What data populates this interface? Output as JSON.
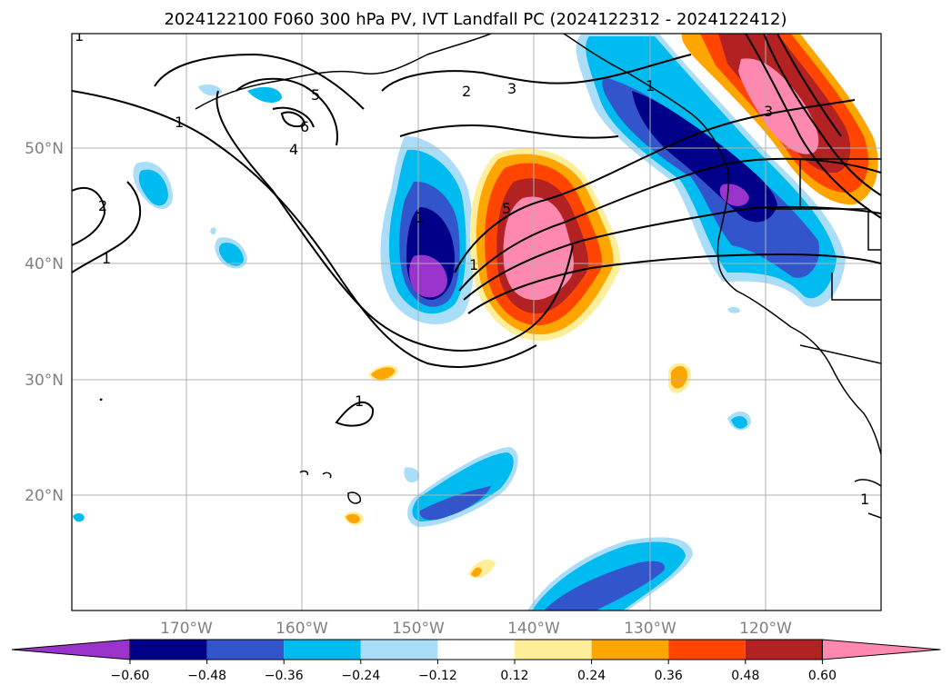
{
  "title": "2024122100 F060 300 hPa PV, IVT Landfall PC (2024122312 - 2024122412)",
  "map": {
    "lat_labels": [
      "50°N",
      "40°N",
      "30°N",
      "20°N"
    ],
    "lon_labels": [
      "170°W",
      "160°W",
      "150°W",
      "140°W",
      "130°W",
      "120°W"
    ]
  },
  "colorbar": {
    "colors": [
      "#9933cc",
      "#000088",
      "#3355cc",
      "#00bbf0",
      "#aaddf8",
      "#ffffff",
      "#ffee99",
      "#ffa500",
      "#ff4500",
      "#b22222",
      "#ff88b0"
    ],
    "tick_labels": [
      "−0.60",
      "−0.48",
      "−0.36",
      "−0.24",
      "−0.12",
      "0.12",
      "0.24",
      "0.36",
      "0.48",
      "0.60"
    ]
  },
  "pv_contour_labels": [
    "1",
    "2",
    "3",
    "4",
    "5",
    "6",
    "1",
    "2",
    "1",
    "1",
    "1",
    "1",
    "5",
    "1",
    "3",
    "1"
  ]
}
